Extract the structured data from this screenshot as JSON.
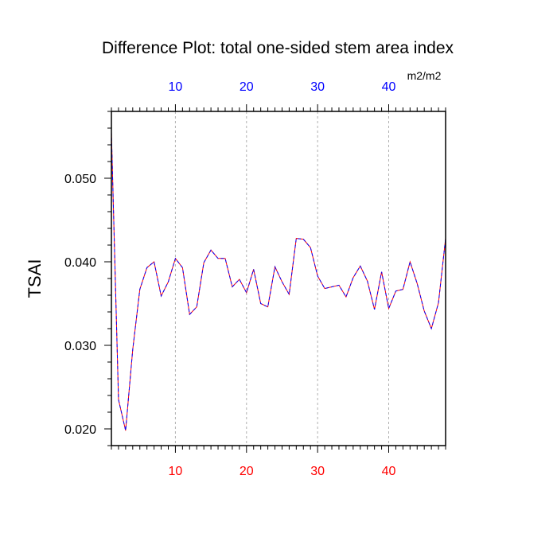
{
  "chart_data": {
    "type": "line",
    "title": "Difference Plot: total one-sided stem area index",
    "units": "m2/m2",
    "ylabel": "TSAI",
    "xlabel": "",
    "xlim": [
      1,
      48
    ],
    "ylim": [
      0.018,
      0.058
    ],
    "x_ticks": [
      10,
      20,
      30,
      40
    ],
    "y_ticks": [
      0.02,
      0.03,
      0.04,
      0.05
    ],
    "y_tick_labels": [
      "0.020",
      "0.030",
      "0.040",
      "0.050"
    ],
    "x_tick_labels": [
      "10",
      "20",
      "30",
      "40"
    ],
    "grid": "vertical dashed at x ticks",
    "colors": {
      "bottom_tick_labels": "#ff0000",
      "top_tick_labels": "#0000ff",
      "series_a": "#ff0000",
      "series_b": "#0000ff"
    },
    "series": [
      {
        "x": [
          1,
          2,
          3,
          4,
          5,
          6,
          7,
          8,
          9,
          10,
          11,
          12,
          13,
          14,
          15,
          16,
          17,
          18,
          19,
          20,
          21,
          22,
          23,
          24,
          25,
          26,
          27,
          28,
          29,
          30,
          31,
          32,
          33,
          34,
          35,
          36,
          37,
          38,
          39,
          40,
          41,
          42,
          43,
          44,
          45,
          46,
          47,
          48
        ],
        "values": [
          0.0555,
          0.0235,
          0.0198,
          0.0295,
          0.0367,
          0.0393,
          0.04,
          0.0359,
          0.0376,
          0.0404,
          0.0393,
          0.0337,
          0.0346,
          0.0399,
          0.0414,
          0.0404,
          0.0404,
          0.037,
          0.0379,
          0.0363,
          0.0391,
          0.035,
          0.0346,
          0.0394,
          0.0376,
          0.0361,
          0.0428,
          0.0427,
          0.0417,
          0.0383,
          0.0368,
          0.037,
          0.0372,
          0.0358,
          0.0381,
          0.0395,
          0.0377,
          0.0343,
          0.0388,
          0.0344,
          0.0365,
          0.0367,
          0.04,
          0.0374,
          0.0341,
          0.032,
          0.0351,
          0.0428
        ]
      }
    ]
  }
}
